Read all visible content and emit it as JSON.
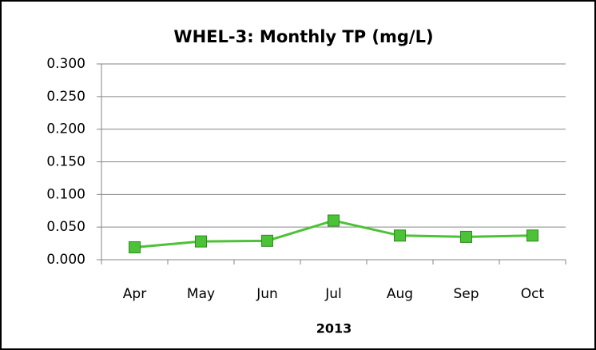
{
  "chart_data": {
    "type": "line",
    "title": "WHEL-3: Monthly TP (mg/L)",
    "xlabel": "2013",
    "categories": [
      "Apr",
      "May",
      "Jun",
      "Jul",
      "Aug",
      "Sep",
      "Oct"
    ],
    "values": [
      0.019,
      0.028,
      0.029,
      0.06,
      0.037,
      0.035,
      0.037
    ],
    "color": "#4cc236",
    "ylim": [
      0,
      0.3
    ],
    "yticks": [
      {
        "value": 0,
        "label": "0.000"
      },
      {
        "value": 0.05,
        "label": "0.050"
      },
      {
        "value": 0.1,
        "label": "0.100"
      },
      {
        "value": 0.15,
        "label": "0.150"
      },
      {
        "value": 0.2,
        "label": "0.200"
      },
      {
        "value": 0.25,
        "label": "0.250"
      },
      {
        "value": 0.3,
        "label": "0.300"
      }
    ],
    "grid": true
  }
}
